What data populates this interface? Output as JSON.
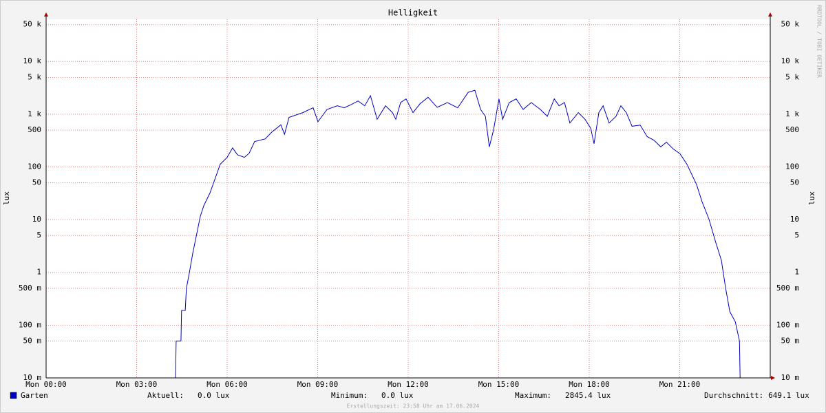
{
  "chart_data": {
    "type": "line",
    "title": "Helligkeit",
    "y_label": "lux",
    "watermark": "RRDTOOL / TOBI OETIKER",
    "footer": "Erstellungszeit: 23:58 Uhr am 17.06.2024",
    "log_scale": true,
    "grid": true,
    "xlim": [
      0,
      24
    ],
    "ylim": [
      0.01,
      63000
    ],
    "xticks": [
      {
        "value": 0,
        "label": "Mon 00:00"
      },
      {
        "value": 3,
        "label": "Mon 03:00"
      },
      {
        "value": 6,
        "label": "Mon 06:00"
      },
      {
        "value": 9,
        "label": "Mon 09:00"
      },
      {
        "value": 12,
        "label": "Mon 12:00"
      },
      {
        "value": 15,
        "label": "Mon 15:00"
      },
      {
        "value": 18,
        "label": "Mon 18:00"
      },
      {
        "value": 21,
        "label": "Mon 21:00"
      }
    ],
    "yticks": [
      {
        "value": 0.01,
        "label": "10 m"
      },
      {
        "value": 0.05,
        "label": "50 m"
      },
      {
        "value": 0.1,
        "label": "100 m"
      },
      {
        "value": 0.5,
        "label": "500 m"
      },
      1,
      5,
      10,
      50,
      100,
      500,
      {
        "value": 1000,
        "label": "1 k"
      },
      {
        "value": 5000,
        "label": "5 k"
      },
      {
        "value": 10000,
        "label": "10 k"
      },
      {
        "value": 50000,
        "label": "50 k"
      }
    ],
    "x": [
      0,
      4.29,
      4.31,
      4.47,
      4.49,
      4.61,
      4.65,
      4.75,
      4.86,
      5.0,
      5.11,
      5.23,
      5.43,
      5.61,
      5.77,
      6.0,
      6.18,
      6.34,
      6.57,
      6.73,
      6.91,
      7.26,
      7.48,
      7.78,
      7.9,
      8.05,
      8.51,
      8.85,
      9.01,
      9.31,
      9.65,
      9.88,
      10.11,
      10.34,
      10.56,
      10.75,
      10.97,
      11.25,
      11.48,
      11.59,
      11.75,
      11.93,
      12.16,
      12.39,
      12.66,
      12.96,
      13.3,
      13.64,
      13.99,
      14.21,
      14.4,
      14.56,
      14.69,
      14.83,
      15.01,
      15.13,
      15.35,
      15.58,
      15.81,
      16.08,
      16.38,
      16.61,
      16.84,
      17.0,
      17.18,
      17.36,
      17.64,
      17.86,
      18.05,
      18.16,
      18.32,
      18.46,
      18.66,
      18.89,
      19.05,
      19.23,
      19.42,
      19.69,
      19.92,
      20.15,
      20.37,
      20.56,
      20.78,
      21.01,
      21.24,
      21.4,
      21.56,
      21.74,
      21.97,
      22.2,
      22.38,
      22.52,
      22.66,
      22.84,
      22.98,
      23.0,
      24
    ],
    "series": [
      {
        "name": "Garten",
        "color": "#0000c0",
        "values": [
          0,
          0,
          0.05,
          0.05,
          0.19,
          0.19,
          0.5,
          1,
          2.3,
          5.7,
          11.6,
          18.6,
          32,
          62,
          112,
          152,
          230,
          170,
          152,
          182,
          302,
          340,
          457,
          630,
          416,
          870,
          1070,
          1320,
          720,
          1230,
          1440,
          1320,
          1520,
          1780,
          1440,
          2240,
          800,
          1440,
          1070,
          800,
          1660,
          1950,
          1070,
          1570,
          2090,
          1350,
          1660,
          1320,
          2600,
          2845.4,
          1230,
          910,
          240,
          500,
          1950,
          800,
          1660,
          1950,
          1230,
          1660,
          1230,
          910,
          1950,
          1440,
          1660,
          680,
          1070,
          800,
          540,
          275,
          1070,
          1440,
          680,
          910,
          1440,
          1070,
          590,
          620,
          375,
          320,
          240,
          295,
          220,
          178,
          112,
          72,
          46,
          22,
          10.2,
          3.6,
          1.7,
          0.51,
          0.18,
          0.116,
          0.05,
          0,
          0
        ]
      }
    ],
    "stats": [
      {
        "label": "Aktuell:",
        "value": "0.0 lux"
      },
      {
        "label": "Minimum:",
        "value": "0.0 lux"
      },
      {
        "label": "Maximum:",
        "value": "2845.4 lux"
      },
      {
        "label": "Durchschnitt:",
        "value": "649.1 lux"
      }
    ]
  }
}
